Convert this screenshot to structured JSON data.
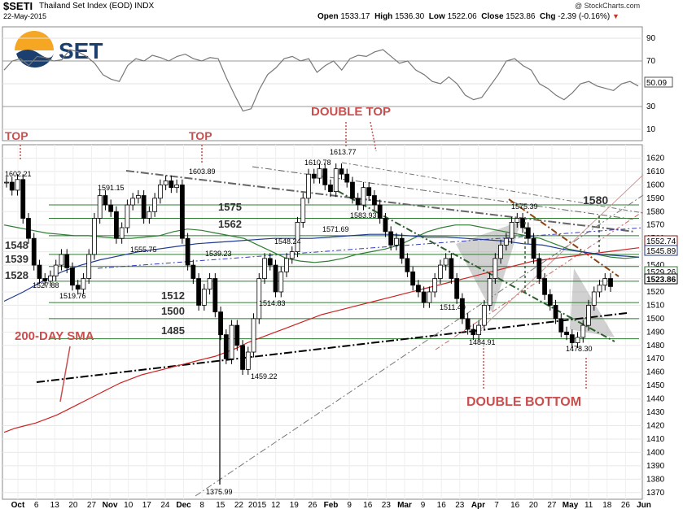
{
  "header": {
    "symbol": "$SETI",
    "name": "Thailand Set Index (EOD)",
    "exchange": "INDX",
    "date": "22-May-2015",
    "copyright": "@ StockCharts.com",
    "open_label": "Open",
    "open": "1533.17",
    "high_label": "High",
    "high": "1536.30",
    "low_label": "Low",
    "low": "1522.06",
    "close_label": "Close",
    "close": "1523.86",
    "chg_label": "Chg",
    "chg": "-2.39 (-0.16%)"
  },
  "logo": {
    "text": "SET"
  },
  "colors": {
    "annotation_red": "#c94f4f",
    "sma200": "#cc2222",
    "sma50": "#2e7d32",
    "sma_blue": "#1f3a93",
    "rsi_line": "#777777",
    "channel_gray": "#666666",
    "trend_black": "#000000",
    "horizontal_green": "#2e7d32"
  },
  "chart_data": [
    {
      "type": "line",
      "panel": "RSI",
      "ylim": [
        0,
        100
      ],
      "yticks": [
        "90",
        "70",
        "50",
        "30",
        "10"
      ],
      "last_value": "50.09",
      "series": [
        {
          "values": [
            62,
            70,
            72,
            66,
            74,
            73,
            70,
            71,
            80,
            78,
            74,
            68,
            58,
            54,
            52,
            66,
            72,
            70,
            75,
            73,
            70,
            74,
            76,
            72,
            70,
            73,
            72,
            55,
            40,
            26,
            28,
            45,
            58,
            64,
            72,
            74,
            70,
            72,
            60,
            66,
            70,
            62,
            72,
            75,
            74,
            78,
            80,
            74,
            68,
            70,
            62,
            58,
            52,
            50,
            56,
            50,
            40,
            36,
            38,
            48,
            58,
            70,
            72,
            66,
            62,
            50,
            46,
            40,
            36,
            42,
            50,
            52,
            48,
            46,
            44,
            50,
            52,
            48
          ]
        }
      ]
    },
    {
      "type": "line",
      "panel": "Price",
      "title": "",
      "ylim": [
        1365,
        1630
      ],
      "yticks": [
        "1620",
        "1610",
        "1600",
        "1590",
        "1580",
        "1570",
        "1560",
        "1550",
        "1540",
        "1530",
        "1520",
        "1510",
        "1500",
        "1490",
        "1480",
        "1470",
        "1460",
        "1450",
        "1440",
        "1430",
        "1420",
        "1410",
        "1400",
        "1390",
        "1380",
        "1370"
      ],
      "xticks": [
        "Oct",
        "6",
        "13",
        "20",
        "27",
        "Nov",
        "10",
        "17",
        "24",
        "Dec",
        "8",
        "15",
        "22",
        "2015",
        "12",
        "19",
        "26",
        "Feb",
        "9",
        "16",
        "23",
        "Mar",
        "9",
        "16",
        "23",
        "Apr",
        "7",
        "16",
        "20",
        "27",
        "May",
        "11",
        "18",
        "26",
        "Jun"
      ],
      "price_series": [
        1602,
        1596,
        1604,
        1575,
        1560,
        1540,
        1530,
        1528,
        1532,
        1540,
        1548,
        1538,
        1525,
        1522,
        1530,
        1548,
        1575,
        1592,
        1585,
        1580,
        1560,
        1568,
        1585,
        1590,
        1592,
        1575,
        1580,
        1590,
        1600,
        1603,
        1598,
        1600,
        1560,
        1540,
        1530,
        1510,
        1522,
        1530,
        1505,
        1488,
        1470,
        1495,
        1480,
        1462,
        1475,
        1500,
        1530,
        1545,
        1540,
        1520,
        1535,
        1545,
        1550,
        1572,
        1590,
        1608,
        1605,
        1612,
        1600,
        1595,
        1612,
        1608,
        1602,
        1590,
        1585,
        1598,
        1592,
        1585,
        1575,
        1565,
        1555,
        1560,
        1545,
        1535,
        1525,
        1520,
        1512,
        1520,
        1530,
        1540,
        1545,
        1530,
        1515,
        1500,
        1492,
        1488,
        1495,
        1510,
        1530,
        1545,
        1555,
        1560,
        1572,
        1575,
        1568,
        1560,
        1545,
        1530,
        1518,
        1510,
        1500,
        1490,
        1488,
        1482,
        1486,
        1495,
        1510,
        1520,
        1525,
        1530,
        1524
      ],
      "series": [
        {
          "values": [
            1415,
            1418,
            1420,
            1422,
            1425,
            1428,
            1432,
            1436,
            1440,
            1444,
            1448,
            1452,
            1455,
            1458,
            1460,
            1462,
            1464,
            1466,
            1468,
            1470,
            1472,
            1475,
            1478,
            1482,
            1485,
            1488,
            1491,
            1494,
            1497,
            1500,
            1503,
            1505,
            1507,
            1509,
            1511,
            1513,
            1515,
            1517,
            1519,
            1521,
            1523,
            1525,
            1527,
            1529,
            1531,
            1533,
            1535,
            1537,
            1539,
            1541,
            1543,
            1544,
            1545,
            1546,
            1547,
            1548,
            1549,
            1550,
            1551,
            1552,
            1553
          ]
        },
        {
          "values": [
            1570,
            1568,
            1566,
            1564,
            1563,
            1562,
            1562,
            1561,
            1560,
            1560,
            1561,
            1562,
            1565,
            1567,
            1566,
            1564,
            1562,
            1560,
            1555,
            1550,
            1545,
            1543,
            1542,
            1543,
            1545,
            1548,
            1550,
            1552,
            1555,
            1560,
            1565,
            1568,
            1570,
            1570,
            1568,
            1566,
            1564,
            1562,
            1560,
            1556,
            1552,
            1550,
            1548,
            1546,
            1545,
            1546
          ]
        },
        {
          "values": [
            1513,
            1520,
            1528,
            1535,
            1540,
            1544,
            1547,
            1550,
            1552,
            1554,
            1556,
            1557,
            1558,
            1559,
            1560,
            1560,
            1560,
            1561,
            1562,
            1563,
            1563,
            1562,
            1561,
            1561,
            1560,
            1559,
            1558,
            1556,
            1555,
            1552,
            1550,
            1548,
            1547,
            1546
          ]
        }
      ],
      "horizontal_levels": [
        "1585",
        "1575",
        "1562",
        "1548",
        "1539",
        "1528",
        "1512",
        "1500",
        "1485"
      ],
      "price_labels": [
        "1602.21",
        "1603.89",
        "1591.15",
        "1555.75",
        "1527.88",
        "1519.76",
        "1539.23",
        "1548.24",
        "1571.69",
        "1610.78",
        "1613.77",
        "1583.93",
        "1514.83",
        "1459.22",
        "1375.99",
        "1511.40",
        "1484.91",
        "1575.39",
        "1478.30"
      ],
      "level_labels": [
        "1575",
        "1562",
        "1548",
        "1539",
        "1528",
        "1512",
        "1500",
        "1485",
        "1580"
      ],
      "axis_badges": [
        "1552.74",
        "1545.89",
        "1529.26",
        "1523.86"
      ],
      "annotations": [
        "TOP",
        "TOP",
        "DOUBLE TOP",
        "200-DAY SMA",
        "DOUBLE BOTTOM"
      ]
    }
  ]
}
